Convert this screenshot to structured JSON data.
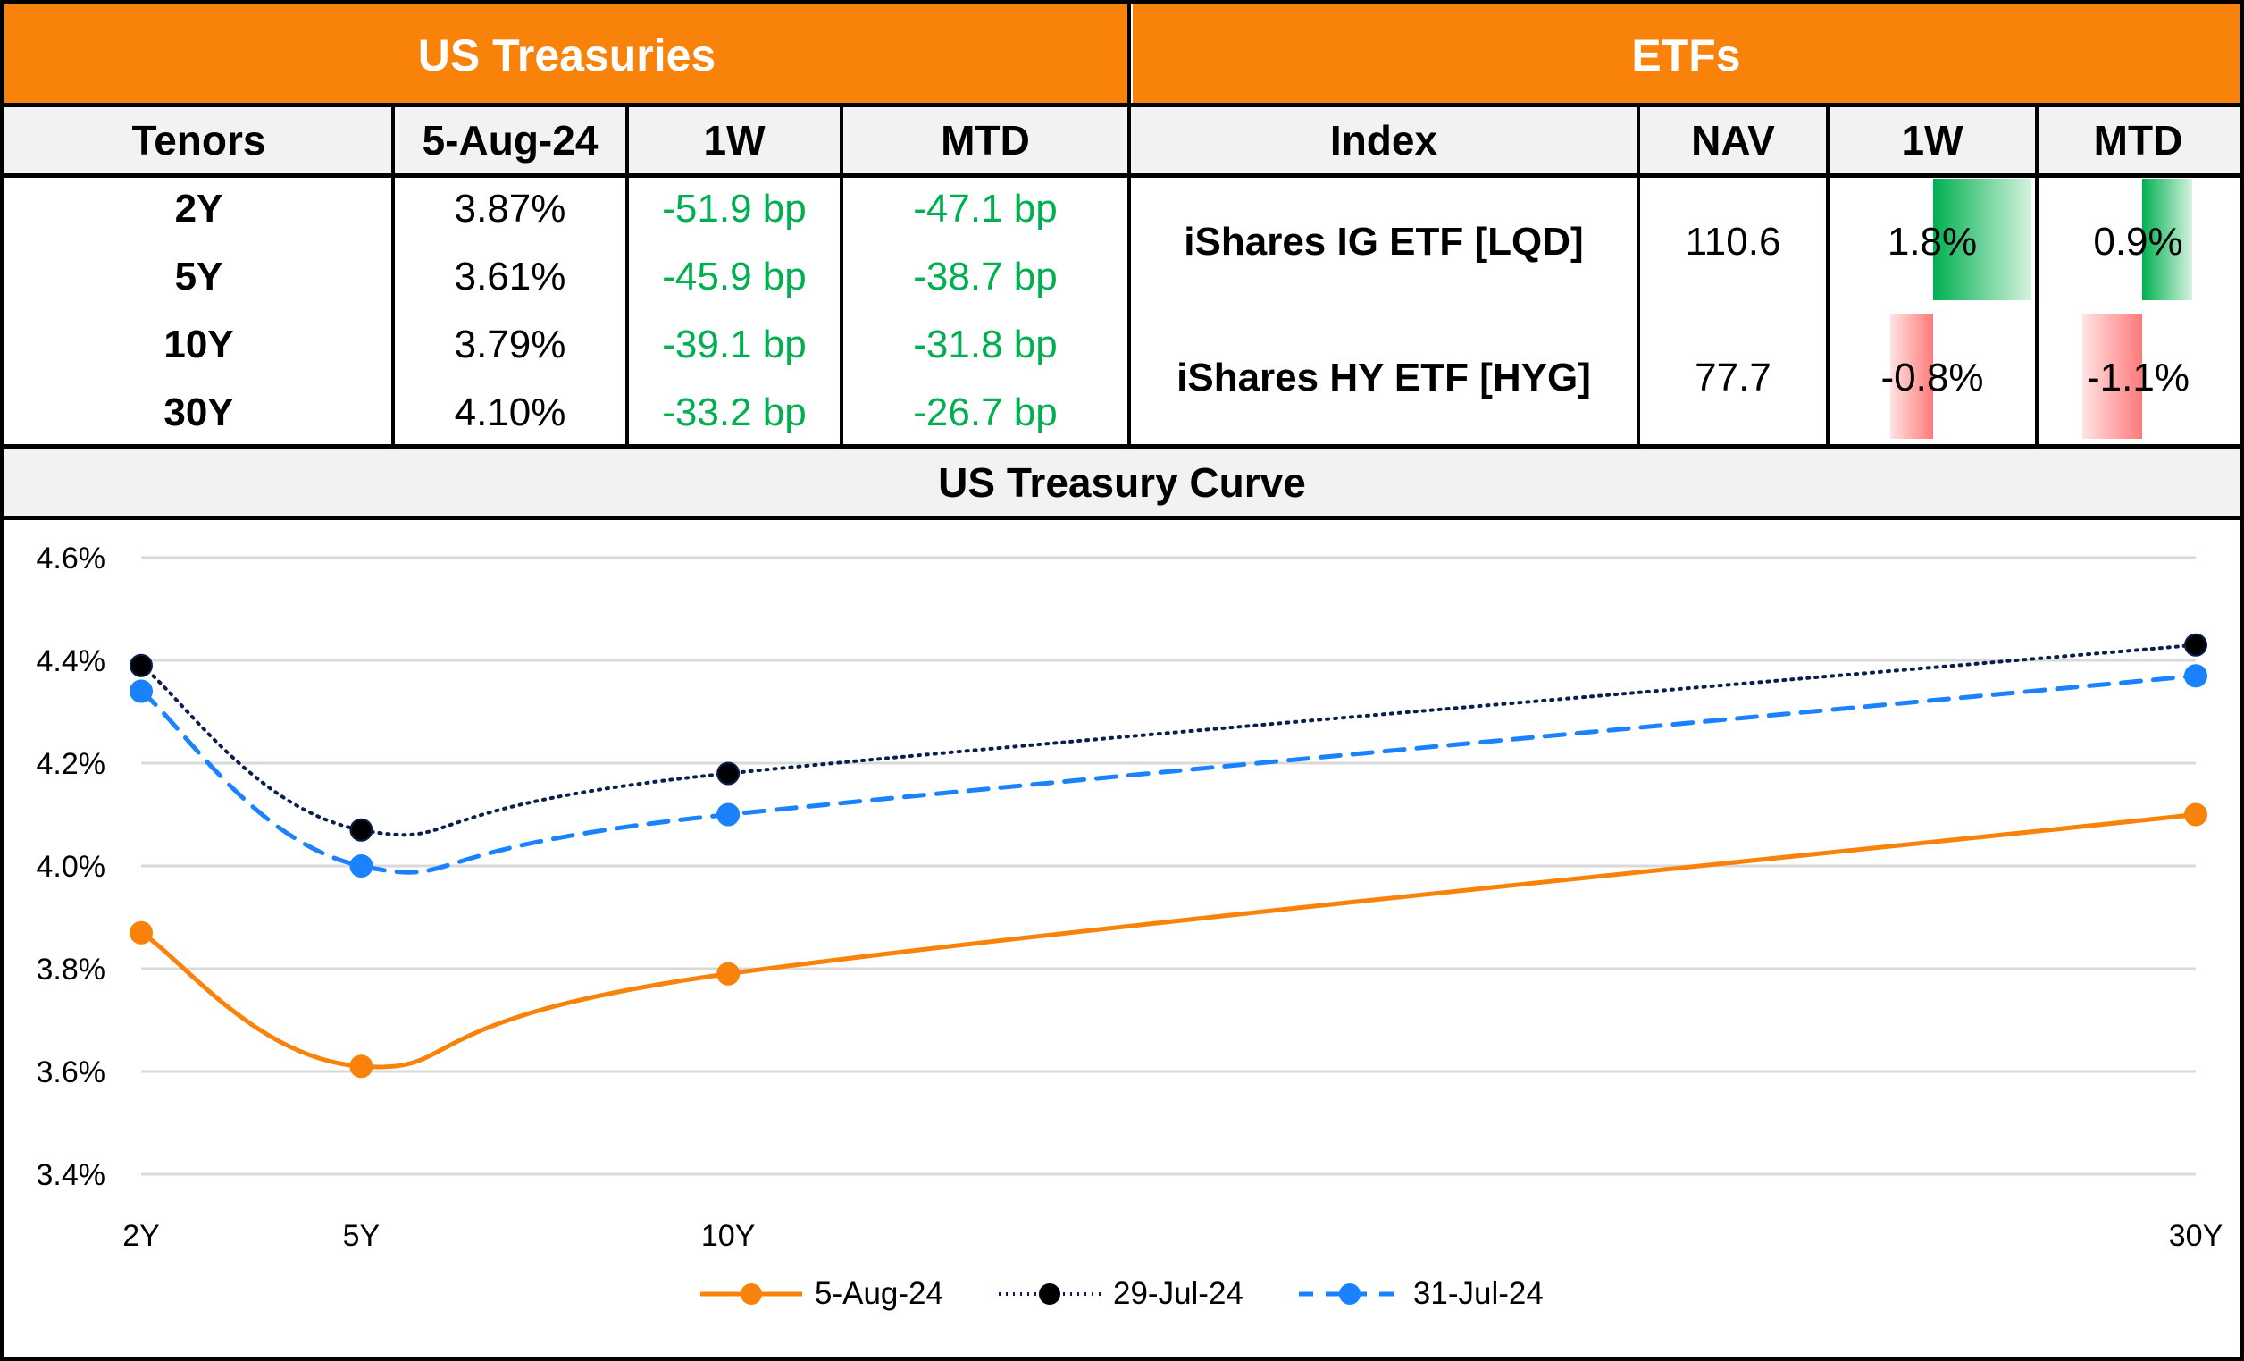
{
  "treasuries": {
    "title": "US Treasuries",
    "columns": [
      "Tenors",
      "5-Aug-24",
      "1W",
      "MTD"
    ],
    "rows": [
      {
        "tenor": "2Y",
        "yield": "3.87%",
        "w1": "-51.9 bp",
        "mtd": "-47.1 bp"
      },
      {
        "tenor": "5Y",
        "yield": "3.61%",
        "w1": "-45.9 bp",
        "mtd": "-38.7 bp"
      },
      {
        "tenor": "10Y",
        "yield": "3.79%",
        "w1": "-39.1 bp",
        "mtd": "-31.8 bp"
      },
      {
        "tenor": "30Y",
        "yield": "4.10%",
        "w1": "-33.2 bp",
        "mtd": "-26.7 bp"
      }
    ]
  },
  "etfs": {
    "title": "ETFs",
    "columns": [
      "Index",
      "NAV",
      "1W",
      "MTD"
    ],
    "rows": [
      {
        "index": "iShares IG ETF [LQD]",
        "nav": "110.6",
        "w1": "1.8%",
        "mtd": "0.9%",
        "w1_value": 1.8,
        "mtd_value": 0.9
      },
      {
        "index": "iShares HY ETF [HYG]",
        "nav": "77.7",
        "w1": "-0.8%",
        "mtd": "-1.1%",
        "w1_value": -0.8,
        "mtd_value": -1.1
      }
    ]
  },
  "colors": {
    "header_orange": "#f8820a",
    "positive_green": "#00b050",
    "negative_red": "#ff7a7a",
    "series_5aug": "#f8820a",
    "series_29jul": "#0b1f4d",
    "series_31jul": "#1a82ff"
  },
  "chart_data": {
    "type": "line",
    "title": "US Treasury Curve",
    "xlabel": "",
    "ylabel": "",
    "x": [
      2,
      5,
      10,
      30
    ],
    "categories": [
      "2Y",
      "5Y",
      "10Y",
      "30Y"
    ],
    "ylim": [
      3.4,
      4.6
    ],
    "yticks": [
      3.4,
      3.6,
      3.8,
      4.0,
      4.2,
      4.4,
      4.6
    ],
    "ytick_labels": [
      "3.4%",
      "3.6%",
      "3.8%",
      "4.0%",
      "4.2%",
      "4.4%",
      "4.6%"
    ],
    "grid": true,
    "legend_position": "bottom",
    "series": [
      {
        "name": "5-Aug-24",
        "values": [
          3.87,
          3.61,
          3.79,
          4.1
        ],
        "style": "solid",
        "color": "#f8820a"
      },
      {
        "name": "29-Jul-24",
        "values": [
          4.39,
          4.07,
          4.18,
          4.43
        ],
        "style": "dotted",
        "color": "#0b1f4d"
      },
      {
        "name": "31-Jul-24",
        "values": [
          4.34,
          4.0,
          4.1,
          4.37
        ],
        "style": "dashed",
        "color": "#1a82ff"
      }
    ]
  }
}
